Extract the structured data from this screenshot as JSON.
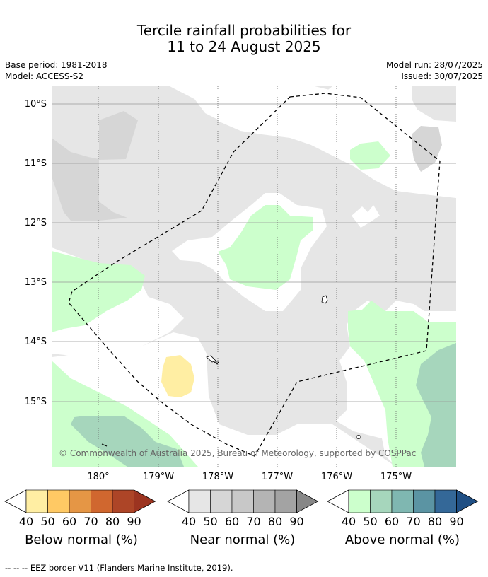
{
  "title_line1": "Tercile rainfall probabilities for",
  "title_line2": "11 to 24 August 2025",
  "base_period": "Base period: 1981-2018",
  "model": "Model: ACCESS-S2",
  "model_run": "Model run: 28/07/2025",
  "issued": "Issued: 30/07/2025",
  "map": {
    "lat_labels": [
      "10°S",
      "11°S",
      "12°S",
      "13°S",
      "14°S",
      "15°S"
    ],
    "lon_labels": [
      "180°",
      "179°W",
      "178°W",
      "177°W",
      "176°W",
      "175°W"
    ],
    "copyright": "© Commonwealth of Australia 2025, Bureau of Meteorology, supported by COSPPac",
    "colors": {
      "near_normal_40": "#e6e6e6",
      "near_normal_50": "#d6d6d6",
      "above_40": "#ccffcc",
      "above_50": "#a6d6bc",
      "below_40": "#ffeea3"
    }
  },
  "colorbars": [
    {
      "title": "Below normal (%)",
      "ticks": [
        "40",
        "50",
        "60",
        "70",
        "80",
        "90"
      ],
      "colors": [
        "#ffeea3",
        "#ffc964",
        "#e59645",
        "#d0672f",
        "#ad4527",
        "#9c3420"
      ]
    },
    {
      "title": "Near normal (%)",
      "ticks": [
        "40",
        "50",
        "60",
        "70",
        "80",
        "90"
      ],
      "colors": [
        "#e6e6e6",
        "#d6d6d6",
        "#c8c8c8",
        "#b4b4b4",
        "#a3a3a3",
        "#878787"
      ]
    },
    {
      "title": "Above normal (%)",
      "ticks": [
        "40",
        "50",
        "60",
        "70",
        "80",
        "90"
      ],
      "colors": [
        "#ccffcc",
        "#a6d6bc",
        "#7fb7b1",
        "#5b94a3",
        "#346898",
        "#1f4f84"
      ]
    }
  ],
  "footnote": "--  --  -- EEZ border V11 (Flanders Marine Institute, 2019)."
}
